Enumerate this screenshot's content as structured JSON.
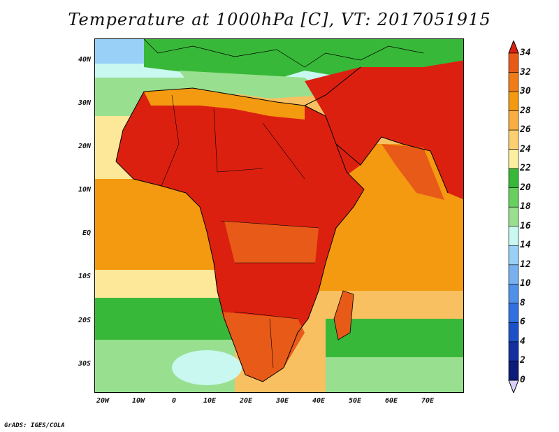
{
  "title": "Temperature at 1000hPa [C], VT: 2017051915",
  "credit": "GrADS: IGES/COLA",
  "map": {
    "projection": "lat-lon",
    "lon_range": [
      -23,
      80
    ],
    "lat_range": [
      -37,
      45
    ],
    "lat_ticks": [
      "40N",
      "30N",
      "20N",
      "10N",
      "EQ",
      "10S",
      "20S",
      "30S"
    ],
    "lon_ticks": [
      "20W",
      "10W",
      "0",
      "10E",
      "20E",
      "30E",
      "40E",
      "50E",
      "60E",
      "70E"
    ],
    "colors": {
      "hot": "#dc2010",
      "very_warm": "#e85a18",
      "warm": "#f49a10",
      "mild": "#f8c060",
      "cool_yellow": "#fce898",
      "green": "#38b838",
      "light_green": "#98e090",
      "cyan": "#c8f8f0",
      "light_blue": "#98d0f8"
    }
  },
  "colorbar": {
    "labels": [
      "34",
      "32",
      "30",
      "28",
      "26",
      "24",
      "22",
      "20",
      "18",
      "16",
      "14",
      "12",
      "10",
      "8",
      "6",
      "4",
      "2",
      "0"
    ],
    "colors": [
      "#dc2010",
      "#e85a18",
      "#f07c18",
      "#f49a10",
      "#f8ae40",
      "#fcd070",
      "#fcf0a0",
      "#38b838",
      "#68d060",
      "#98e090",
      "#c8f8f0",
      "#98d0f8",
      "#78b0f0",
      "#5090e8",
      "#3070e0",
      "#1c50c8",
      "#1430a0",
      "#0c1c78"
    ],
    "top_arrow_color": "#dc2010",
    "bottom_arrow_color": "#d8d0f8"
  }
}
